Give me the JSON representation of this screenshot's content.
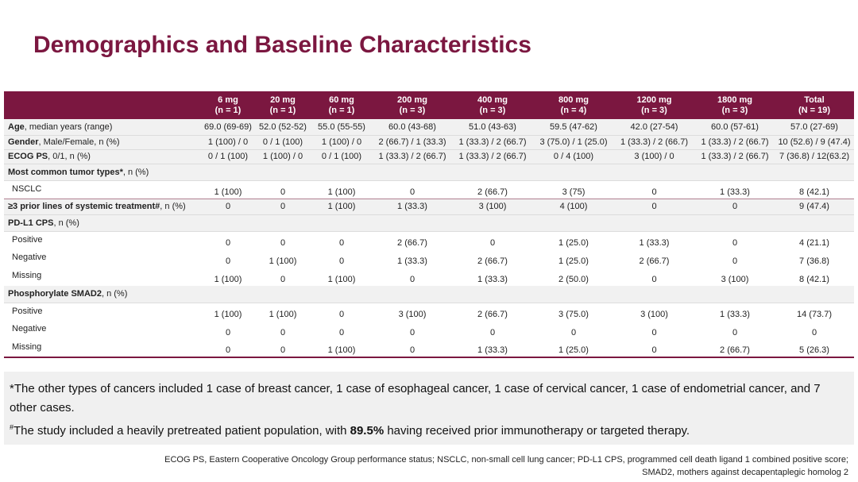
{
  "title": "Demographics and Baseline Characteristics",
  "accent_color": "#7b1740",
  "table": {
    "columns": [
      {
        "dose": "6 mg",
        "n": "(n = 1)"
      },
      {
        "dose": "20 mg",
        "n": "(n = 1)"
      },
      {
        "dose": "60 mg",
        "n": "(n = 1)"
      },
      {
        "dose": "200 mg",
        "n": "(n = 3)"
      },
      {
        "dose": "400 mg",
        "n": "(n = 3)"
      },
      {
        "dose": "800 mg",
        "n": "(n = 4)"
      },
      {
        "dose": "1200 mg",
        "n": "(n = 3)"
      },
      {
        "dose": "1800 mg",
        "n": "(n = 3)"
      },
      {
        "dose": "Total",
        "n": "(N = 19)"
      }
    ],
    "rows": [
      {
        "bold": "Age",
        "rest": ", median years (range)",
        "type": "main",
        "values": [
          "69.0 (69-69)",
          "52.0 (52-52)",
          "55.0 (55-55)",
          "60.0 (43-68)",
          "51.0 (43-63)",
          "59.5 (47-62)",
          "42.0 (27-54)",
          "60.0 (57-61)",
          "57.0 (27-69)"
        ]
      },
      {
        "bold": "Gender",
        "rest": ", Male/Female, n (%)",
        "type": "main",
        "values": [
          "1 (100) / 0",
          "0 / 1 (100)",
          "1 (100) / 0",
          "2 (66.7) / 1 (33.3)",
          "1 (33.3) / 2 (66.7)",
          "3 (75.0) / 1 (25.0)",
          "1 (33.3) / 2 (66.7)",
          "1 (33.3) / 2 (66.7)",
          "10 (52.6) / 9 (47.4)"
        ]
      },
      {
        "bold": "ECOG PS",
        "rest": ", 0/1, n (%)",
        "type": "main",
        "values": [
          "0 / 1 (100)",
          "1 (100) / 0",
          "0 / 1 (100)",
          "1 (33.3) / 2 (66.7)",
          "1 (33.3) / 2 (66.7)",
          "0 / 4 (100)",
          "3 (100) / 0",
          "1 (33.3) / 2 (66.7)",
          "7 (36.8) / 12(63.2)"
        ]
      },
      {
        "bold": "Most common tumor types*",
        "rest": ", n (%)",
        "type": "section",
        "values": []
      },
      {
        "label": "NSCLC",
        "type": "sub",
        "values": [
          "1 (100)",
          "0",
          "1 (100)",
          "0",
          "2 (66.7)",
          "3 (75)",
          "0",
          "1 (33.3)",
          "8 (42.1)"
        ]
      },
      {
        "bold": "≥3 prior lines of systemic treatment#",
        "rest": ", n (%)",
        "type": "mainline",
        "values": [
          "0",
          "0",
          "1 (100)",
          "1 (33.3)",
          "3 (100)",
          "4 (100)",
          "0",
          "0",
          "9 (47.4)"
        ]
      },
      {
        "bold": "PD-L1 CPS",
        "rest": ", n (%)",
        "type": "section",
        "values": []
      },
      {
        "label": "Positive",
        "type": "sub",
        "values": [
          "0",
          "0",
          "0",
          "2 (66.7)",
          "0",
          "1 (25.0)",
          "1 (33.3)",
          "0",
          "4 (21.1)"
        ]
      },
      {
        "label": "Negative",
        "type": "sub",
        "values": [
          "0",
          "1 (100)",
          "0",
          "1 (33.3)",
          "2 (66.7)",
          "1 (25.0)",
          "2 (66.7)",
          "0",
          "7 (36.8)"
        ]
      },
      {
        "label": "Missing",
        "type": "sub",
        "values": [
          "1 (100)",
          "0",
          "1 (100)",
          "0",
          "1 (33.3)",
          "2 (50.0)",
          "0",
          "3 (100)",
          "8 (42.1)"
        ]
      },
      {
        "bold": "Phosphorylate SMAD2",
        "rest": ", n (%)",
        "type": "section",
        "values": []
      },
      {
        "label": "Positive",
        "type": "sub",
        "values": [
          "1 (100)",
          "1 (100)",
          "0",
          "3 (100)",
          "2 (66.7)",
          "3 (75.0)",
          "3 (100)",
          "1 (33.3)",
          "14 (73.7)"
        ]
      },
      {
        "label": "Negative",
        "type": "sub",
        "values": [
          "0",
          "0",
          "0",
          "0",
          "0",
          "0",
          "0",
          "0",
          "0"
        ]
      },
      {
        "label": "Missing",
        "type": "sub",
        "values": [
          "0",
          "0",
          "1 (100)",
          "0",
          "1 (33.3)",
          "1 (25.0)",
          "0",
          "2 (66.7)",
          "5 (26.3)"
        ]
      }
    ]
  },
  "notes": {
    "note1": "*The other types of cancers included 1 case of breast cancer, 1 case of esophageal cancer, 1 case of cervical cancer, 1 case of endometrial cancer, and 7 other cases.",
    "note2_mark": "#",
    "note2_pre": "The study included a heavily pretreated patient population, with ",
    "note2_bold": "89.5%",
    "note2_post": " having received prior immunotherapy or targeted therapy."
  },
  "abbreviations": {
    "line1": "ECOG PS, Eastern Cooperative Oncology Group performance status; NSCLC, non-small cell lung cancer; PD-L1 CPS, programmed cell death ligand 1 combined positive score;",
    "line2": "SMAD2, mothers against decapentaplegic homolog 2"
  }
}
